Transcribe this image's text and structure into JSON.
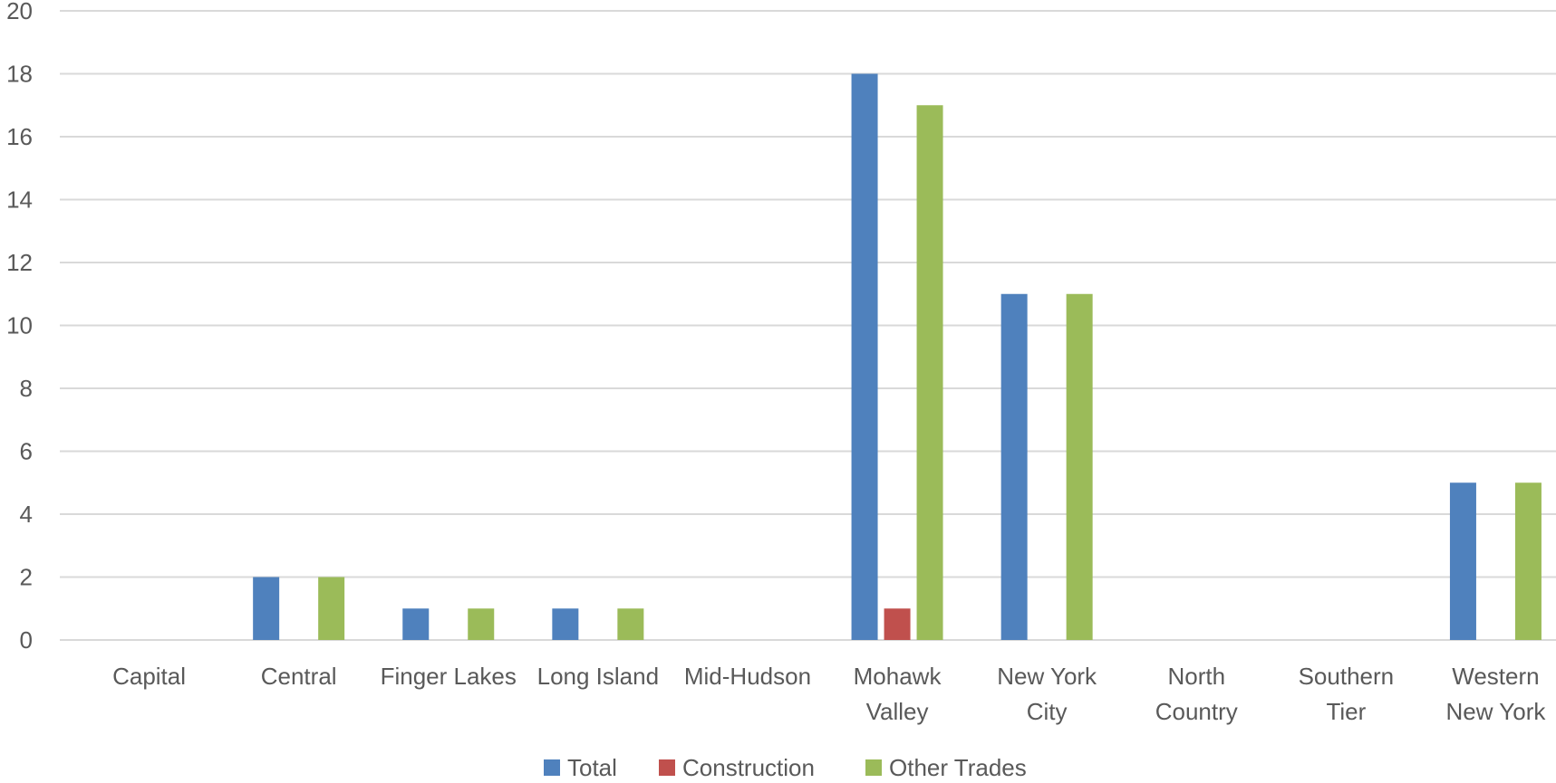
{
  "chart_data": {
    "type": "bar",
    "categories": [
      [
        "Capital"
      ],
      [
        "Central"
      ],
      [
        "Finger Lakes"
      ],
      [
        "Long Island"
      ],
      [
        "Mid-Hudson"
      ],
      [
        "Mohawk",
        "Valley"
      ],
      [
        "New York",
        "City"
      ],
      [
        "North",
        "Country"
      ],
      [
        "Southern",
        "Tier"
      ],
      [
        "Western",
        "New York"
      ]
    ],
    "series": [
      {
        "name": "Total",
        "color": "#4f81bd",
        "values": [
          0,
          2,
          1,
          1,
          0,
          18,
          11,
          0,
          0,
          5
        ]
      },
      {
        "name": "Construction",
        "color": "#c0504d",
        "values": [
          0,
          0,
          0,
          0,
          0,
          1,
          0,
          0,
          0,
          0
        ]
      },
      {
        "name": "Other Trades",
        "color": "#9bbb59",
        "values": [
          0,
          2,
          1,
          1,
          0,
          17,
          11,
          0,
          0,
          5
        ]
      }
    ],
    "yticks": [
      "0",
      "2",
      "4",
      "6",
      "8",
      "10",
      "12",
      "14",
      "16",
      "18",
      "20"
    ],
    "ylim": [
      0,
      20
    ],
    "grid": true,
    "legend_position": "bottom"
  }
}
